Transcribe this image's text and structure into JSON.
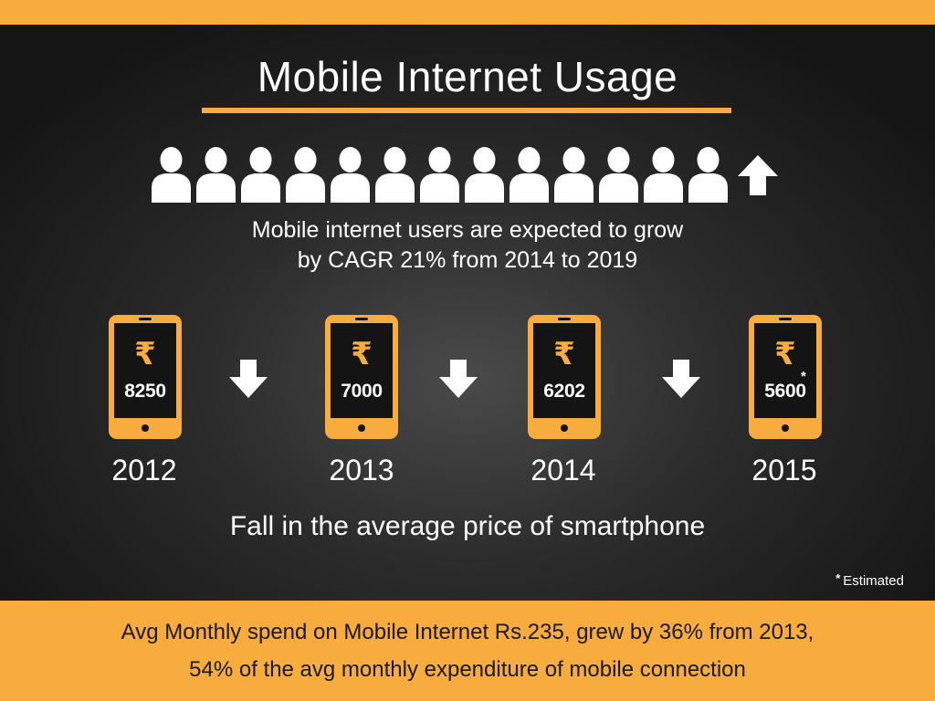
{
  "title": "Mobile Internet Usage",
  "colors": {
    "accent": "#f9ac3e",
    "background": "#1c1c1c",
    "text": "#ffffff",
    "band_text": "#1a1a1a"
  },
  "users_icon_row": {
    "person_icon": "person-icon",
    "person_count": 13,
    "trend_icon": "up-arrow-icon"
  },
  "growth_text": {
    "line1": "Mobile internet users are expected to grow",
    "line2": "by CAGR 21% from 2014 to 2019"
  },
  "phones": [
    {
      "year": "2012",
      "currency": "₹",
      "price": "8250"
    },
    {
      "year": "2013",
      "currency": "₹",
      "price": "7000"
    },
    {
      "year": "2014",
      "currency": "₹",
      "price": "6202"
    },
    {
      "year": "2015",
      "currency": "₹",
      "price": "5600",
      "marker": "*"
    }
  ],
  "trend_arrow_icon": "down-arrow-icon",
  "caption": "Fall in the average price of smartphone",
  "footnote": {
    "marker": "*",
    "text": "Estimated"
  },
  "bottom_band": {
    "line1": "Avg Monthly spend on Mobile Internet Rs.235, grew by 36% from 2013,",
    "line2": "54% of the avg monthly expenditure of mobile connection"
  }
}
